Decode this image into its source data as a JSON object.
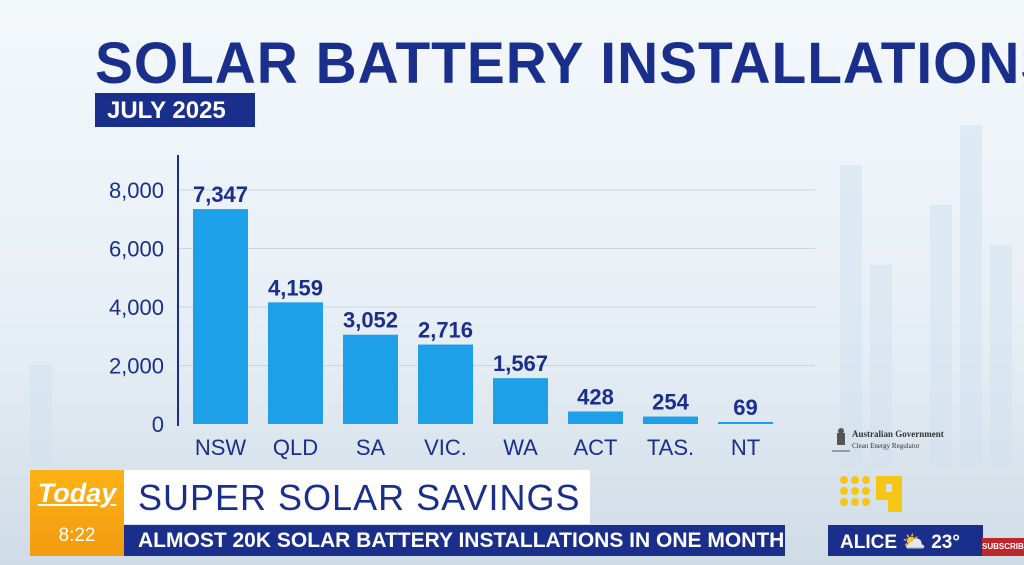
{
  "title": "SOLAR BATTERY INSTALLATIONS",
  "date": "JULY 2025",
  "chart_data": {
    "type": "bar",
    "title": "SOLAR BATTERY INSTALLATIONS",
    "subtitle": "JULY 2025",
    "categories": [
      "NSW",
      "QLD",
      "SA",
      "VIC.",
      "WA",
      "ACT",
      "TAS.",
      "NT"
    ],
    "values": [
      7347,
      4159,
      3052,
      2716,
      1567,
      428,
      254,
      69
    ],
    "data_labels": [
      "7,347",
      "4,159",
      "3,052",
      "2,716",
      "1,567",
      "428",
      "254",
      "69"
    ],
    "yticks": [
      0,
      2000,
      4000,
      6000,
      8000
    ],
    "ytick_labels": [
      "0",
      "2,000",
      "4,000",
      "6,000",
      "8,000"
    ],
    "ylim": [
      0,
      8000
    ],
    "grid": true,
    "bar_color": "#1ea0e8",
    "label_color": "#1a2e8c"
  },
  "source": {
    "line1": "Australian Government",
    "line2": "Clean Energy Regulator"
  },
  "ticker": {
    "logo": "Today",
    "time": "8:22",
    "headline": "SUPER SOLAR SAVINGS",
    "subheadline": "ALMOST 20K SOLAR BATTERY INSTALLATIONS IN ONE MONTH",
    "weather_city": "ALICE",
    "weather_icon": "partly-cloudy-icon",
    "temperature": "23°",
    "subscribe": "SUBSCRIBE"
  },
  "colors": {
    "navy": "#1a2e8c",
    "orange": "#f7a812",
    "nine_yellow": "#f5c518"
  }
}
